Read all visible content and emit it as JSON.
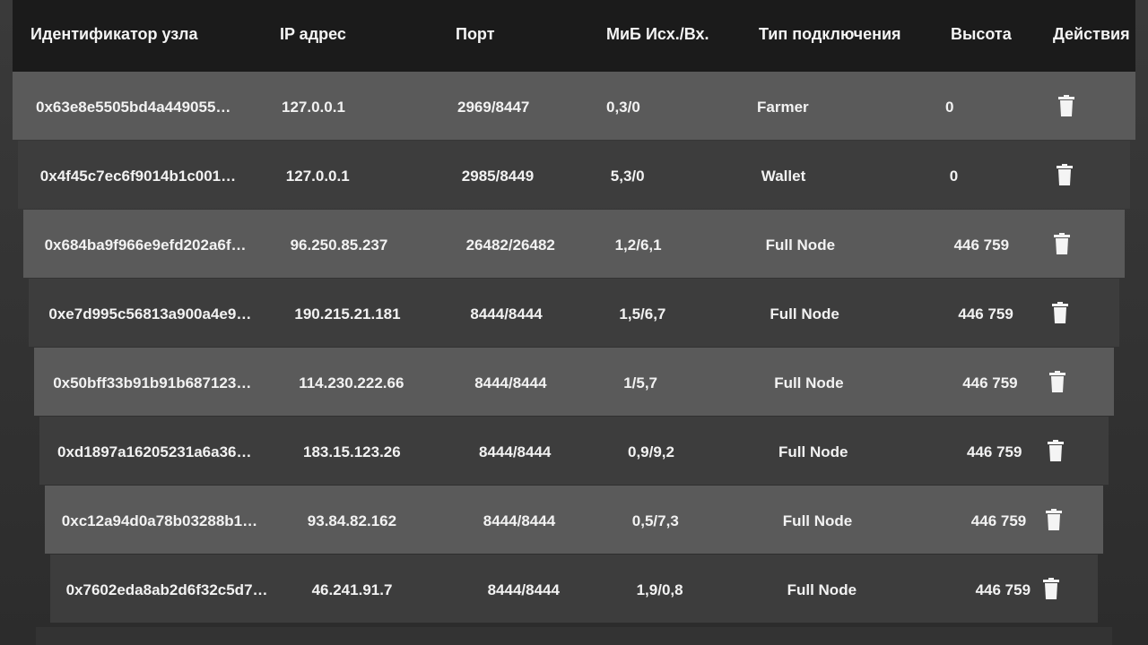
{
  "table": {
    "headers": {
      "node_id": "Идентификатор узла",
      "ip": "IP адрес",
      "port": "Порт",
      "mib": "МиБ Исх./Вх.",
      "conn_type": "Тип подключения",
      "height": "Высота",
      "actions": "Действия"
    },
    "rows": [
      {
        "node_id": "0x63e8e5505bd4a449055…",
        "ip": "127.0.0.1",
        "port": "2969/8447",
        "mib": "0,3/0",
        "conn_type": "Farmer",
        "height": "0",
        "action_icon": "trash-icon"
      },
      {
        "node_id": "0x4f45c7ec6f9014b1c001…",
        "ip": "127.0.0.1",
        "port": "2985/8449",
        "mib": "5,3/0",
        "conn_type": "Wallet",
        "height": "0",
        "action_icon": "trash-icon"
      },
      {
        "node_id": "0x684ba9f966e9efd202a6f…",
        "ip": "96.250.85.237",
        "port": "26482/26482",
        "mib": "1,2/6,1",
        "conn_type": "Full Node",
        "height": "446 759",
        "action_icon": "trash-icon"
      },
      {
        "node_id": "0xe7d995c56813a900a4e9…",
        "ip": "190.215.21.181",
        "port": "8444/8444",
        "mib": "1,5/6,7",
        "conn_type": "Full Node",
        "height": "446 759",
        "action_icon": "trash-icon"
      },
      {
        "node_id": "0x50bff33b91b91b687123…",
        "ip": "114.230.222.66",
        "port": "8444/8444",
        "mib": "1/5,7",
        "conn_type": "Full Node",
        "height": "446 759",
        "action_icon": "trash-icon"
      },
      {
        "node_id": "0xd1897a16205231a6a36…",
        "ip": "183.15.123.26",
        "port": "8444/8444",
        "mib": "0,9/9,2",
        "conn_type": "Full Node",
        "height": "446 759",
        "action_icon": "trash-icon"
      },
      {
        "node_id": "0xc12a94d0a78b03288b1…",
        "ip": "93.84.82.162",
        "port": "8444/8444",
        "mib": "0,5/7,3",
        "conn_type": "Full Node",
        "height": "446 759",
        "action_icon": "trash-icon"
      },
      {
        "node_id": "0x7602eda8ab2d6f32c5d7…",
        "ip": "46.241.91.7",
        "port": "8444/8444",
        "mib": "1,9/0,8",
        "conn_type": "Full Node",
        "height": "446 759",
        "action_icon": "trash-icon"
      }
    ]
  },
  "colors": {
    "header_bg": "#1b1b1b",
    "row_light": "#5a5a5a",
    "row_dark": "#3d3d3d",
    "text": "#f2f2f2"
  }
}
